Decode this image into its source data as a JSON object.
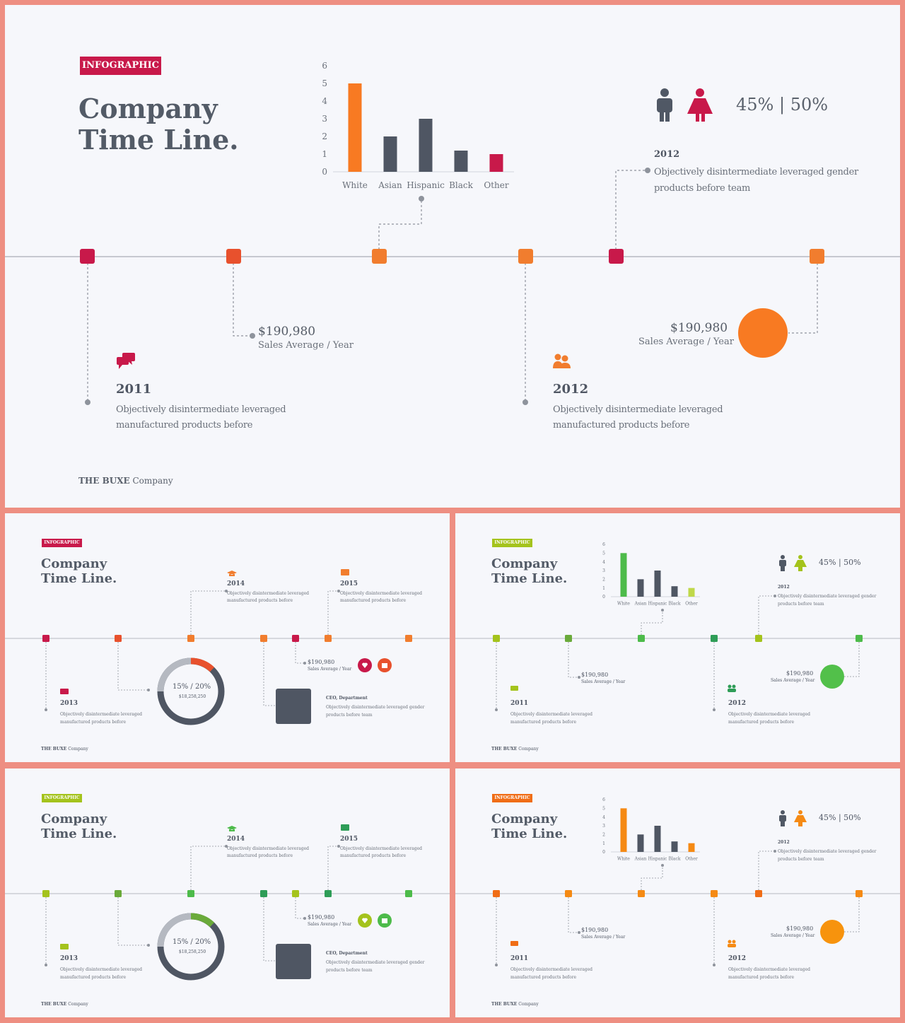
{
  "main": {
    "badge": "INFOGRAPHIC",
    "title": "Company\nTime Line.",
    "gender_ratio": "45% | 50%",
    "note_2012_top": {
      "year": "2012",
      "text": "Objectively disintermediate leveraged gender\nproducts before team"
    },
    "sales_left": {
      "value": "$190,980",
      "label": "Sales Average / Year"
    },
    "sales_right": {
      "value": "$190,980",
      "label": "Sales Average / Year"
    },
    "item_2011": {
      "year": "2011",
      "text": "Objectively disintermediate leveraged\nmanufactured products before"
    },
    "item_2012": {
      "year": "2012",
      "text": "Objectively disintermediate leveraged\nmanufactured products before"
    },
    "brand_bold": "THE BUXE",
    "brand_rest": " Company"
  },
  "chart_data": {
    "type": "bar",
    "categories": [
      "White",
      "Asian",
      "Hispanic",
      "Black",
      "Other"
    ],
    "values": [
      5,
      2,
      3,
      1.2,
      1
    ],
    "ylim": [
      0,
      6
    ],
    "yticks": [
      "0",
      "1",
      "2",
      "3",
      "4",
      "5",
      "6"
    ]
  },
  "thumbs": {
    "badge": "INFOGRAPHIC",
    "title": "Company\nTime Line.",
    "gender_ratio": "45% | 50%",
    "brand_bold": "THE BUXE",
    "brand_rest": " Company",
    "y2014": "2014",
    "y2015": "2015",
    "y2013": "2013",
    "y2011": "2011",
    "y2012": "2012",
    "desc_short": "Objectively disintermediate leveraged\nmanufactured products before",
    "desc_gender": "Objectively disintermediate leveraged gender\nproducts before team",
    "sales_value": "$190,980",
    "sales_label": "Sales Average / Year",
    "donut_pct": "15% / 20%",
    "donut_sub": "$18,258,250",
    "ceo_title": "CEO, Department"
  },
  "themes": {
    "red": {
      "accent": "#c8194a",
      "mid": "#e8512d",
      "orange": "#f17d2e"
    },
    "lime": {
      "accent": "#a4c31c",
      "mid": "#6aaa3a",
      "green": "#4dbb4a",
      "dark": "#2e9d57"
    },
    "orange": {
      "accent": "#f06d16",
      "mid": "#f58a14",
      "circle": "#f7930d"
    }
  }
}
